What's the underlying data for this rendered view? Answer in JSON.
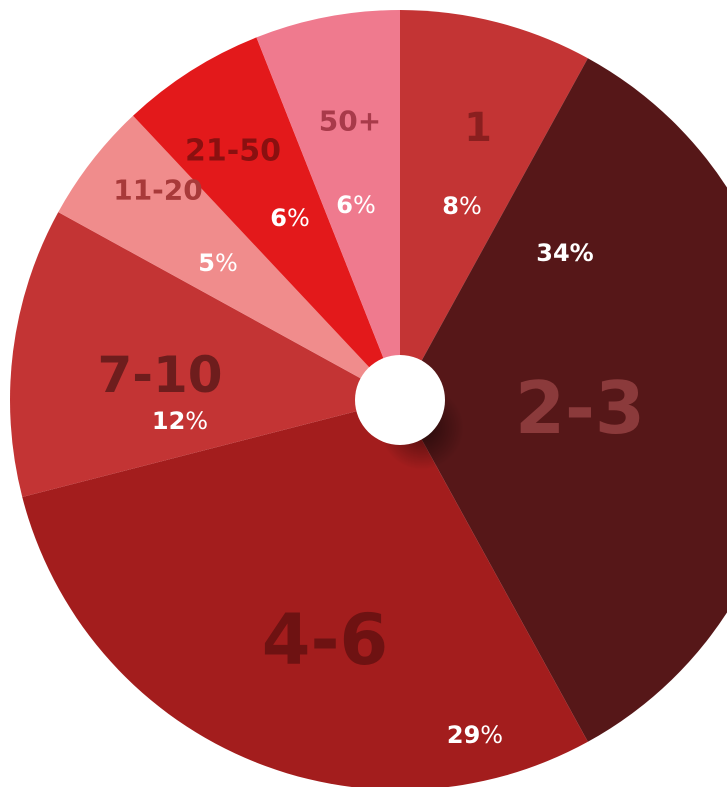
{
  "chart_data": {
    "type": "pie",
    "donut_hole": true,
    "slices": [
      {
        "label": "1",
        "value": 8,
        "num": "8",
        "sign": "%",
        "color": "#c33434",
        "label_color": "#8a1f1f"
      },
      {
        "label": "2-3",
        "value": 34,
        "num": "34%",
        "sign": "",
        "color": "#561718",
        "label_color": "#8b3a3b"
      },
      {
        "label": "4-6",
        "value": 29,
        "num": "29",
        "sign": "%",
        "color": "#a31d1d",
        "label_color": "#6e1212"
      },
      {
        "label": "7-10",
        "value": 12,
        "num": "12",
        "sign": "%",
        "color": "#c33434",
        "label_color": "#6e1d1d"
      },
      {
        "label": "11-20",
        "value": 5,
        "num": "5",
        "sign": "%",
        "color": "#f08c8c",
        "label_color": "#a83a3a"
      },
      {
        "label": "21-50",
        "value": 6,
        "num": "6",
        "sign": "%",
        "color": "#e3191b",
        "label_color": "#8a1010"
      },
      {
        "label": "50+",
        "value": 6,
        "num": "6",
        "sign": "%",
        "color": "#ef7a8e",
        "label_color": "#a83a4a"
      }
    ]
  }
}
